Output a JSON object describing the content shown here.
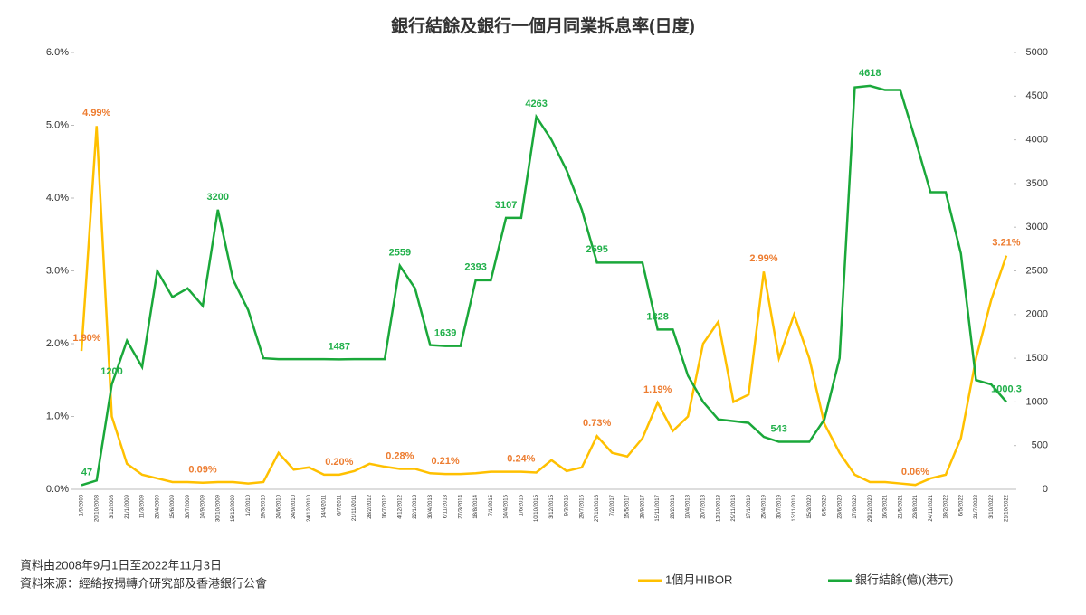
{
  "chart_data": {
    "type": "line",
    "title": "銀行結餘及銀行一個月同業拆息率(日度)",
    "notes": [
      "資料由2008年9月1日至2022年11月3日",
      "資料來源：經絡按揭轉介研究部及香港銀行公會"
    ],
    "categories": [
      "1/9/2008",
      "20/10/2008",
      "3/12/2008",
      "21/1/2009",
      "11/3/2009",
      "28/4/2009",
      "15/6/2009",
      "30/7/2009",
      "14/9/2009",
      "30/10/2009",
      "15/12/2009",
      "1/2/2010",
      "19/3/2010",
      "24/6/2010",
      "24/9/2010",
      "24/12/2010",
      "14/4/2011",
      "6/7/2011",
      "21/11/2011",
      "28/2/2012",
      "16/7/2012",
      "4/12/2012",
      "22/1/2013",
      "30/4/2013",
      "6/11/2013",
      "27/3/2014",
      "18/8/2014",
      "7/1/2015",
      "14/4/2015",
      "1/6/2015",
      "10/10/2015",
      "3/12/2015",
      "9/3/2016",
      "29/7/2016",
      "27/10/2016",
      "7/2/2017",
      "15/5/2017",
      "28/9/2017",
      "15/11/2017",
      "28/2/2018",
      "10/4/2018",
      "20/7/2018",
      "12/10/2018",
      "29/11/2018",
      "17/1/2019",
      "25/4/2019",
      "30/7/2019",
      "13/11/2019",
      "15/3/2020",
      "6/5/2020",
      "23/6/2020",
      "17/9/2020",
      "29/12/2020",
      "16/3/2021",
      "21/5/2021",
      "23/8/2021",
      "24/11/2021",
      "18/2/2022",
      "6/5/2022",
      "21/7/2022",
      "3/10/2022",
      "21/10/2022"
    ],
    "series": [
      {
        "name": "1個月HIBOR",
        "color": "#ffc000",
        "label_color": "#ed7d31",
        "axis": "y",
        "values": [
          1.9,
          4.99,
          1.0,
          0.35,
          0.2,
          0.15,
          0.1,
          0.1,
          0.09,
          0.1,
          0.1,
          0.08,
          0.1,
          0.5,
          0.27,
          0.3,
          0.2,
          0.2,
          0.25,
          0.35,
          0.31,
          0.28,
          0.28,
          0.22,
          0.21,
          0.21,
          0.22,
          0.24,
          0.24,
          0.24,
          0.23,
          0.4,
          0.25,
          0.3,
          0.73,
          0.5,
          0.45,
          0.7,
          1.19,
          0.8,
          1.0,
          2.0,
          2.3,
          1.2,
          1.3,
          2.99,
          1.8,
          2.4,
          1.8,
          0.9,
          0.5,
          0.2,
          0.1,
          0.1,
          0.08,
          0.06,
          0.15,
          0.2,
          0.7,
          1.8,
          2.6,
          3.21
        ],
        "value_labels": [
          "1.90%",
          "4.99%",
          null,
          null,
          null,
          null,
          null,
          null,
          "0.09%",
          null,
          null,
          null,
          null,
          null,
          null,
          null,
          null,
          "0.20%",
          null,
          null,
          null,
          "0.28%",
          null,
          null,
          "0.21%",
          null,
          null,
          null,
          null,
          "0.24%",
          null,
          null,
          null,
          null,
          "0.73%",
          null,
          null,
          null,
          "1.19%",
          null,
          null,
          null,
          null,
          null,
          null,
          "2.99%",
          null,
          null,
          null,
          null,
          null,
          null,
          null,
          null,
          null,
          "0.06%",
          null,
          null,
          null,
          null,
          null,
          "3.21%"
        ]
      },
      {
        "name": "銀行結餘(億)(港元)",
        "color": "#1aa83a",
        "label_color": "#22b04b",
        "axis": "y2",
        "values": [
          47,
          100,
          1200,
          1700,
          1400,
          2500,
          2200,
          2300,
          2100,
          3200,
          2400,
          2050,
          1500,
          1490,
          1490,
          1490,
          1490,
          1487,
          1490,
          1490,
          1490,
          2559,
          2300,
          1650,
          1639,
          1639,
          2393,
          2393,
          3107,
          3107,
          4263,
          4000,
          3650,
          3200,
          2595,
          2595,
          2595,
          2595,
          1828,
          1828,
          1300,
          1000,
          800,
          780,
          760,
          600,
          543,
          543,
          543,
          800,
          1500,
          4600,
          4618,
          4570,
          4570,
          4000,
          3400,
          3400,
          2700,
          1250,
          1200,
          1000.3
        ],
        "value_labels": [
          "47",
          null,
          "1200",
          null,
          null,
          null,
          null,
          null,
          null,
          "3200",
          null,
          null,
          null,
          null,
          null,
          null,
          null,
          "1487",
          null,
          null,
          null,
          "2559",
          null,
          null,
          "1639",
          null,
          "2393",
          null,
          "3107",
          null,
          "4263",
          null,
          null,
          null,
          "2595",
          null,
          null,
          null,
          "1828",
          null,
          null,
          null,
          null,
          null,
          null,
          null,
          "543",
          null,
          null,
          null,
          null,
          null,
          "4618",
          null,
          null,
          null,
          null,
          null,
          null,
          null,
          null,
          "1000.3"
        ]
      }
    ],
    "ylim": [
      0,
      6
    ],
    "yticks": [
      {
        "value": 0,
        "label": "0.0%"
      },
      {
        "value": 1,
        "label": "1.0%"
      },
      {
        "value": 2,
        "label": "2.0%"
      },
      {
        "value": 3,
        "label": "3.0%"
      },
      {
        "value": 4,
        "label": "4.0%"
      },
      {
        "value": 5,
        "label": "5.0%"
      },
      {
        "value": 6,
        "label": "6.0%"
      }
    ],
    "y2lim": [
      0,
      5000
    ],
    "y2ticks": [
      0,
      500,
      1000,
      1500,
      2000,
      2500,
      3000,
      3500,
      4000,
      4500,
      5000
    ],
    "legend": "bottom"
  }
}
